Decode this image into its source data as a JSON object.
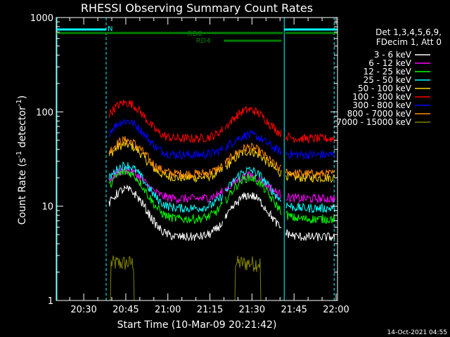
{
  "chart_data": {
    "type": "line",
    "title": "RHESSI Observing Summary Count Rates",
    "xlabel": "Start Time (10-Mar-09 20:21:42)",
    "ylabel": "Count Rate (s⁻¹ detector⁻¹)",
    "ylabel_parts": {
      "pre": "Count Rate (s",
      "sup1": "-1",
      "mid": " detector",
      "sup2": "-1",
      "post": ")"
    },
    "y_scale": "log",
    "ylim": [
      1,
      1000
    ],
    "xlim_minutes": [
      20.2,
      120.5
    ],
    "x_tick_labels": [
      "20:30",
      "20:45",
      "21:00",
      "21:15",
      "21:30",
      "21:45",
      "22:00"
    ],
    "x_tick_minutes": [
      30,
      45,
      60,
      75,
      90,
      105,
      120
    ],
    "y_tick_labels": [
      "1",
      "10",
      "100",
      "1000"
    ],
    "y_tick_values": [
      1,
      10,
      100,
      1000
    ],
    "legend_header": [
      "Det 1,3,4,5,6,9,",
      "FDecim 1, Att 0"
    ],
    "legend_placement": "right",
    "timestamp": "14-Oct-2021 04:55",
    "series": [
      {
        "name": "3 - 6 keV",
        "color": "#ffffff",
        "base": 4.7,
        "peak1": 15,
        "peak2": 13
      },
      {
        "name": "6 - 12 keV",
        "color": "#ff00ff",
        "base": 12,
        "peak1": 24,
        "peak2": 21
      },
      {
        "name": "12 - 25 keV",
        "color": "#00ff00",
        "base": 7.3,
        "peak1": 23,
        "peak2": 20
      },
      {
        "name": "25 - 50 keV",
        "color": "#00ffff",
        "base": 9.5,
        "peak1": 27,
        "peak2": 24
      },
      {
        "name": "50 - 100 keV",
        "color": "#ffd700",
        "base": 20,
        "peak1": 45,
        "peak2": 38
      },
      {
        "name": "100 - 300 keV",
        "color": "#ff0000",
        "base": 52,
        "peak1": 125,
        "peak2": 105
      },
      {
        "name": "300 - 800 keV",
        "color": "#0000ff",
        "base": 35,
        "peak1": 80,
        "peak2": 57
      },
      {
        "name": "800 - 7000 keV",
        "color": "#ff8c00",
        "base": 22,
        "peak1": 50,
        "peak2": 42
      },
      {
        "name": "7000 - 15000 keV",
        "color": "#808000",
        "base": 1,
        "peak1": 2.9,
        "peak2": 2.9
      }
    ],
    "bands": [
      {
        "label": "N",
        "color": "#00ffff",
        "segments_minutes": [
          [
            20.2,
            38.0
          ],
          [
            101.5,
            120.5
          ]
        ]
      },
      {
        "label": "RD0",
        "color": "#008000",
        "segments_minutes": [
          [
            20.2,
            101.0
          ],
          [
            102.0,
            120.5
          ]
        ]
      },
      {
        "label": "RD4",
        "color": "#008000",
        "segments_minutes": [
          [
            80.0,
            100.5
          ]
        ]
      }
    ],
    "gaps_minutes": [
      [
        20.2,
        20.2
      ],
      [
        38.0,
        101.5
      ]
    ],
    "grid": false
  }
}
